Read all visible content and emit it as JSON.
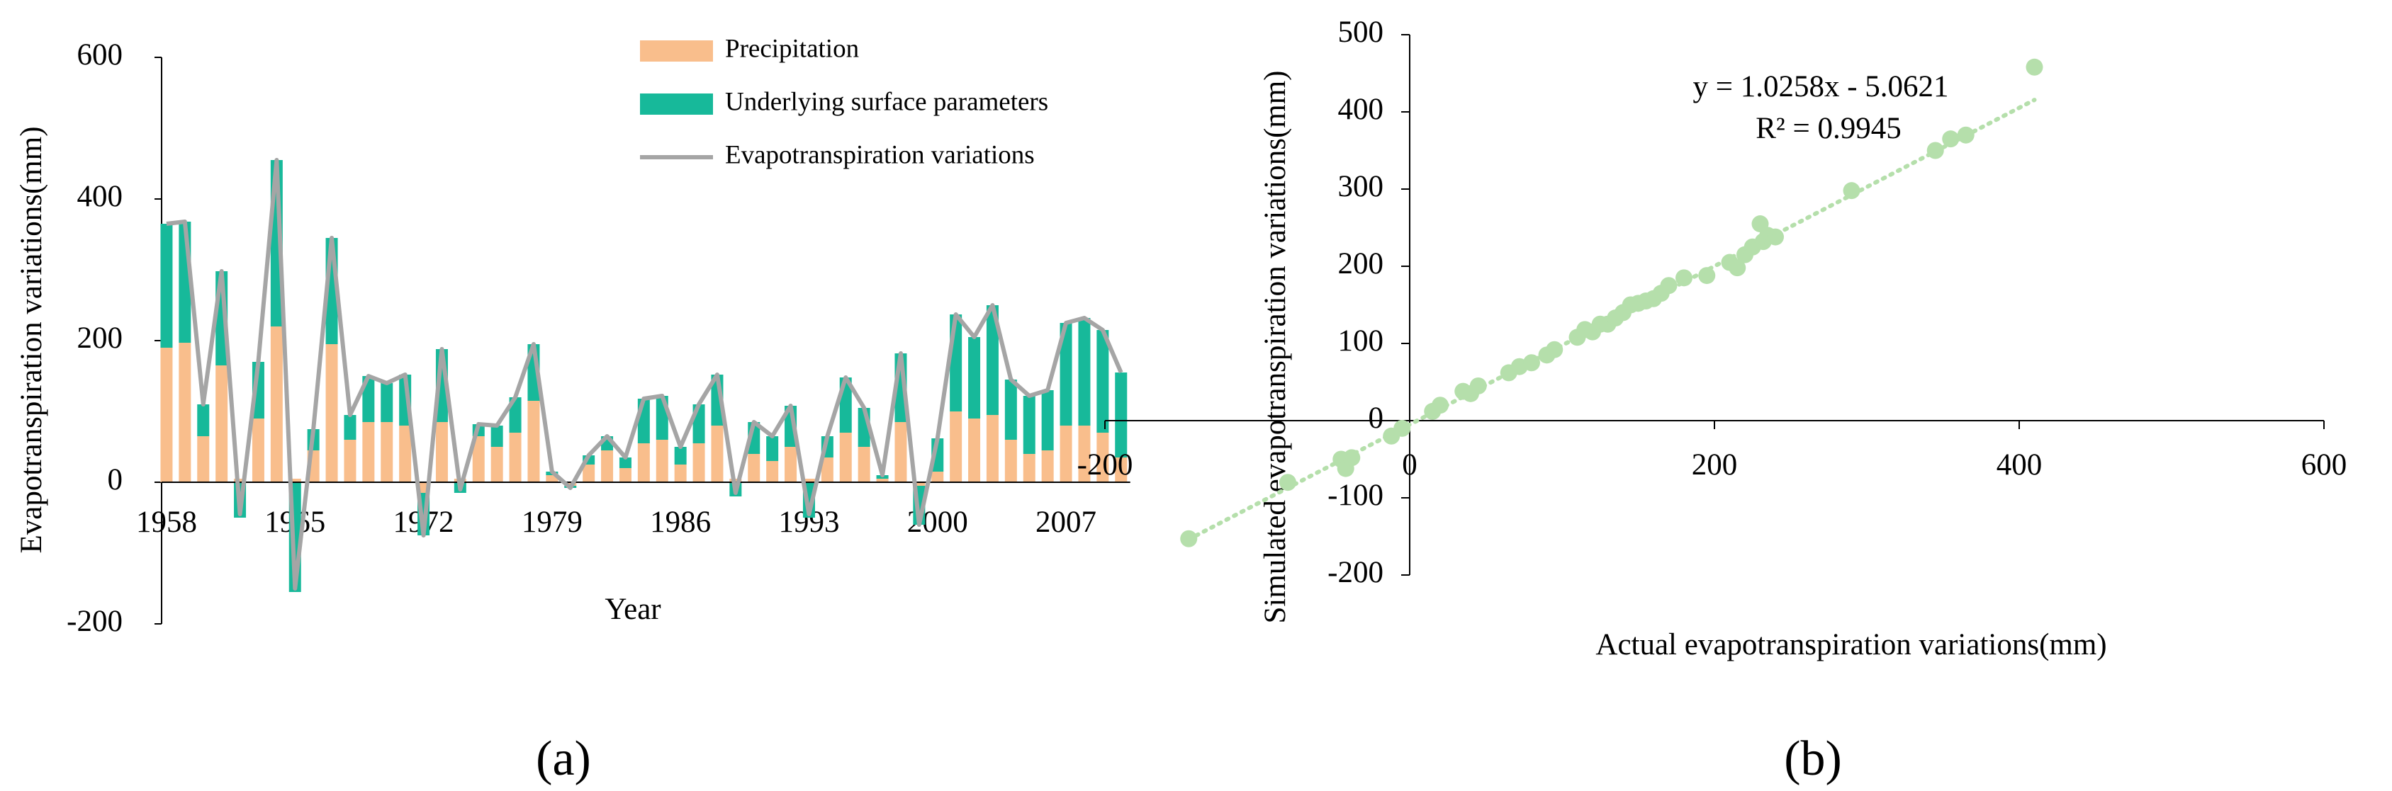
{
  "chart_data": [
    {
      "type": "bar",
      "stacked": true,
      "xlabel": "Year",
      "ylabel": "Evapotranspiration variations(mm)",
      "panel_label": "(a)",
      "categories": [
        "1958",
        null,
        null,
        null,
        null,
        null,
        null,
        "1965",
        null,
        null,
        null,
        null,
        null,
        null,
        "1972",
        null,
        null,
        null,
        null,
        null,
        null,
        "1979",
        null,
        null,
        null,
        null,
        null,
        null,
        "1986",
        null,
        null,
        null,
        null,
        null,
        null,
        "1993",
        null,
        null,
        null,
        null,
        null,
        null,
        "2000",
        null,
        null,
        null,
        null,
        null,
        null,
        "2007",
        null,
        null,
        null
      ],
      "series": [
        {
          "name": "Precipitation",
          "color": "#f9be8c",
          "values": [
            190,
            197,
            65,
            165,
            5,
            90,
            220,
            5,
            45,
            195,
            60,
            85,
            85,
            80,
            -15,
            85,
            5,
            65,
            50,
            70,
            115,
            10,
            -5,
            25,
            45,
            20,
            55,
            60,
            25,
            55,
            80,
            5,
            40,
            30,
            50,
            5,
            35,
            70,
            50,
            5,
            85,
            -5,
            15,
            100,
            90,
            95,
            60,
            40,
            45,
            80,
            80,
            70,
            35
          ]
        },
        {
          "name": "Underlying surface parameters",
          "color": "#17b99a",
          "values": [
            175,
            171,
            45,
            133,
            -50,
            80,
            235,
            -155,
            30,
            150,
            35,
            65,
            55,
            72,
            -60,
            103,
            -15,
            17,
            30,
            50,
            80,
            5,
            -3,
            13,
            20,
            15,
            63,
            62,
            25,
            55,
            72,
            -20,
            45,
            35,
            58,
            -50,
            30,
            78,
            55,
            5,
            97,
            -55,
            47,
            137,
            115,
            155,
            85,
            82,
            85,
            145,
            152,
            145,
            120
          ]
        },
        {
          "name": "Evapotranspiration variations",
          "type": "line",
          "color": "#a5a5a5",
          "values": [
            365,
            368,
            110,
            298,
            -45,
            170,
            455,
            -150,
            75,
            345,
            95,
            150,
            140,
            152,
            -75,
            188,
            -10,
            82,
            80,
            120,
            195,
            15,
            -8,
            38,
            65,
            35,
            118,
            122,
            50,
            110,
            152,
            -15,
            85,
            65,
            108,
            -45,
            65,
            148,
            105,
            10,
            182,
            -60,
            62,
            237,
            205,
            250,
            145,
            122,
            130,
            225,
            232,
            215,
            155
          ]
        }
      ],
      "ylim": [
        -200,
        600
      ],
      "yticks": [
        -200,
        0,
        200,
        400,
        600
      ],
      "grid": false,
      "legend": "top-right"
    },
    {
      "type": "scatter",
      "xlabel": "Actual evapotranspiration variations(mm)",
      "ylabel": "Simulated evapotranspiration variations(mm)",
      "panel_label": "(b)",
      "annotations": [
        "y = 1.0258x - 5.0621",
        "R² = 0.9945"
      ],
      "color": "#b5dfab",
      "x": [
        -145,
        -80,
        -45,
        -42,
        -38,
        -12,
        -5,
        15,
        20,
        35,
        40,
        45,
        65,
        72,
        80,
        90,
        95,
        110,
        115,
        120,
        125,
        130,
        135,
        140,
        145,
        150,
        155,
        160,
        165,
        170,
        180,
        195,
        210,
        215,
        220,
        225,
        230,
        232,
        235,
        240,
        290,
        345,
        355,
        365,
        410
      ],
      "y": [
        -153,
        -80,
        -50,
        -62,
        -48,
        -20,
        -10,
        12,
        20,
        38,
        35,
        45,
        62,
        70,
        75,
        85,
        92,
        108,
        118,
        115,
        125,
        125,
        133,
        140,
        150,
        152,
        155,
        158,
        165,
        175,
        185,
        188,
        205,
        198,
        215,
        225,
        255,
        232,
        240,
        238,
        298,
        350,
        365,
        370,
        458
      ],
      "trendline": {
        "slope": 1.0258,
        "intercept": -5.0621,
        "xrange": [
          -145,
          410
        ]
      },
      "xlim": [
        -200,
        600
      ],
      "xticks": [
        -200,
        0,
        200,
        400,
        600
      ],
      "ylim": [
        -200,
        500
      ],
      "yticks": [
        -200,
        -100,
        0,
        100,
        200,
        300,
        400,
        500
      ],
      "grid": false
    }
  ]
}
